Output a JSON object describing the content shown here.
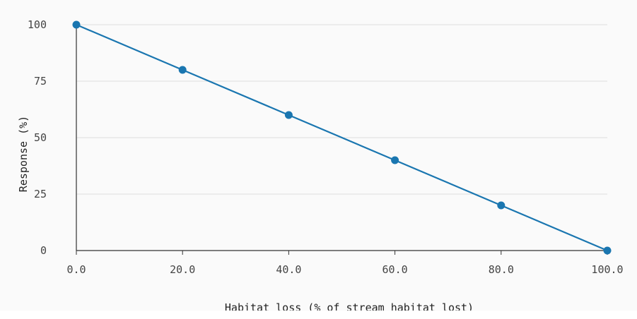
{
  "chart_data": {
    "type": "line",
    "title": "",
    "xlabel": "Habitat loss (% of stream habitat lost)",
    "ylabel": "Response (%)",
    "x": [
      0,
      20,
      40,
      60,
      80,
      100
    ],
    "x_ticks": [
      "0.0",
      "20.0",
      "40.0",
      "60.0",
      "80.0",
      "100.0"
    ],
    "y_ticks": [
      "0",
      "25",
      "50",
      "75",
      "100"
    ],
    "xlim": [
      0,
      100
    ],
    "ylim": [
      0,
      100
    ],
    "grid": "horizontal",
    "legend": "none",
    "series": [
      {
        "values": [
          100,
          80,
          60,
          40,
          20,
          0
        ],
        "color": "#1a76b0"
      }
    ]
  }
}
